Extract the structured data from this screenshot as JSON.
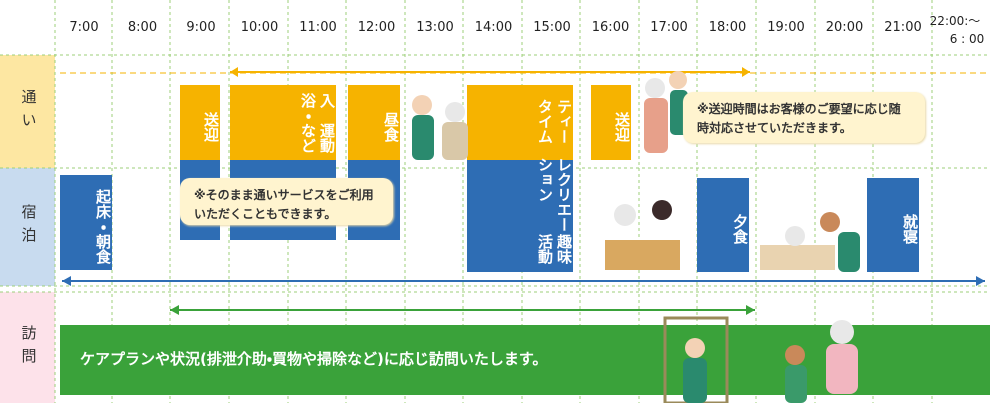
{
  "header": {
    "times": [
      "7:00",
      "8:00",
      "9:00",
      "10:00",
      "11:00",
      "12:00",
      "13:00",
      "14:00",
      "15:00",
      "16:00",
      "17:00",
      "18:00",
      "19:00",
      "20:00",
      "21:00"
    ],
    "last_time": [
      "22:00:〜",
      "6 : 00"
    ]
  },
  "rows": [
    {
      "label": "通い"
    },
    {
      "label": "宿泊"
    },
    {
      "label": "訪問"
    }
  ],
  "day_blocks": [
    {
      "lines": [
        "送迎"
      ]
    },
    {
      "lines": [
        "入浴・",
        "運動など"
      ]
    },
    {
      "lines": [
        "昼食"
      ]
    },
    {
      "lines": [
        "送迎"
      ]
    }
  ],
  "activity_block": {
    "lines": [
      "ティータイム",
      "レクリエーション",
      "趣味活動"
    ]
  },
  "stay_blocks": [
    {
      "lines": [
        "起床・",
        "朝食"
      ]
    },
    {
      "lines": [
        "夕食"
      ]
    },
    {
      "lines": [
        "就寝"
      ]
    }
  ],
  "notes": [
    "※送迎時間はお客様のご要望に応じ随時対応させていただきます。",
    "※そのまま通いサービスをご利用いただくこともできます。"
  ],
  "visit_text": "ケアプランや状況(排泄介助・買物や掃除など)に応じ訪問いたします。"
}
